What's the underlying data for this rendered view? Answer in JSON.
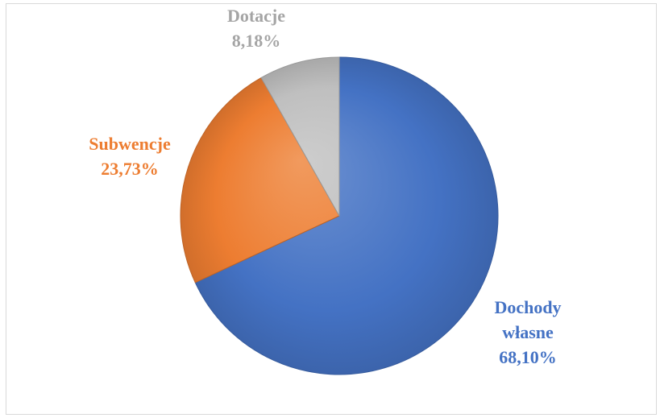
{
  "chart_data": {
    "type": "pie",
    "title": "",
    "slices": [
      {
        "name": "Dochody własne",
        "label_lines": [
          "Dochody",
          "własne"
        ],
        "value": 68.1,
        "value_label": "68,10%",
        "color": "#4472c4",
        "label_color": "#4472c4"
      },
      {
        "name": "Subwencje",
        "label_lines": [
          "Subwencje"
        ],
        "value": 23.73,
        "value_label": "23,73%",
        "color": "#ed7d31",
        "label_color": "#ed7d31"
      },
      {
        "name": "Dotacje",
        "label_lines": [
          "Dotacje"
        ],
        "value": 8.18,
        "value_label": "8,18%",
        "color": "#bfbfbf",
        "label_color": "#a5a5a5"
      }
    ],
    "start_angle": "12 o'clock",
    "direction": "clockwise",
    "legend": "none"
  }
}
